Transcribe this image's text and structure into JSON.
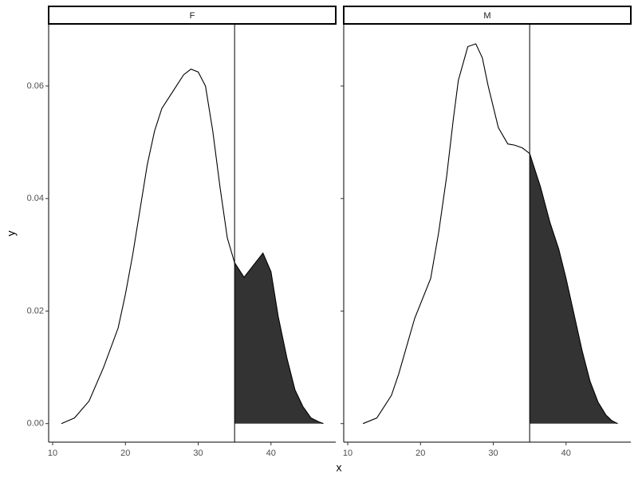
{
  "chart_data": {
    "type": "density",
    "x_label": "x",
    "y_label": "y",
    "xlim": [
      9.45,
      48.9
    ],
    "ylim": [
      -0.0033,
      0.0709
    ],
    "xticks": [
      10,
      20,
      30,
      40
    ],
    "yticks": [
      {
        "value": 0,
        "label": "0.00"
      },
      {
        "value": 0.02,
        "label": "0.02"
      },
      {
        "value": 0.04,
        "label": "0.04"
      },
      {
        "value": 0.06,
        "label": "0.06"
      }
    ],
    "threshold": 35,
    "line_color": "#000000",
    "fill_color": "#333333",
    "panels": [
      {
        "title": "F",
        "x": [
          11.2,
          13,
          15,
          17,
          19,
          20,
          21,
          22,
          23,
          24,
          25,
          26,
          27,
          28,
          29,
          30,
          31,
          32,
          33,
          34,
          35,
          36.3,
          37.5,
          38.9,
          40,
          41,
          42.2,
          43.3,
          44.4,
          45.5,
          46.6,
          47.2
        ],
        "values": [
          0,
          0.001,
          0.004,
          0.01,
          0.017,
          0.023,
          0.03,
          0.038,
          0.046,
          0.052,
          0.056,
          0.058,
          0.06,
          0.062,
          0.063,
          0.0625,
          0.06,
          0.052,
          0.042,
          0.033,
          0.0286,
          0.026,
          0.028,
          0.0303,
          0.027,
          0.019,
          0.0116,
          0.006,
          0.003,
          0.001,
          0.0003,
          0
        ]
      },
      {
        "title": "M",
        "x": [
          12.1,
          14,
          16,
          17,
          19.2,
          21.4,
          22.5,
          23.6,
          24.5,
          25.2,
          26.5,
          27.6,
          28.5,
          29.3,
          30.7,
          32,
          32.9,
          34,
          35,
          36.5,
          37.8,
          39,
          40,
          41,
          42.2,
          43.3,
          44.4,
          45.5,
          46.3,
          47.1
        ],
        "values": [
          0,
          0.001,
          0.005,
          0.0088,
          0.0187,
          0.0258,
          0.034,
          0.044,
          0.054,
          0.061,
          0.067,
          0.0675,
          0.065,
          0.06,
          0.0526,
          0.0497,
          0.0495,
          0.049,
          0.048,
          0.042,
          0.0357,
          0.031,
          0.0258,
          0.02,
          0.013,
          0.0075,
          0.0038,
          0.0015,
          0.0005,
          0
        ]
      }
    ]
  }
}
